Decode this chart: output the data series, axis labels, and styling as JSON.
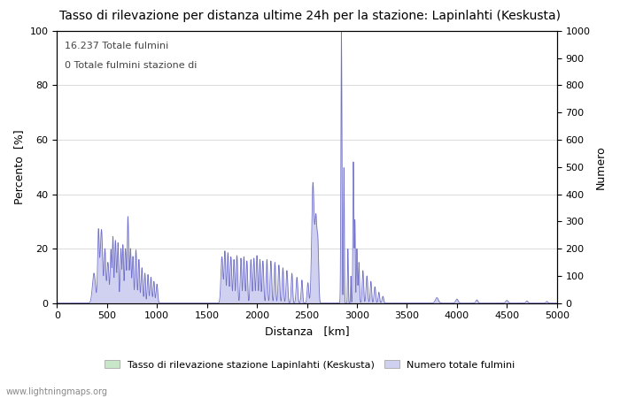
{
  "title": "Tasso di rilevazione per distanza ultime 24h per la stazione: Lapinlahti (Keskusta)",
  "xlabel": "Distanza   [km]",
  "ylabel_left": "Percento  [%]",
  "ylabel_right": "Numero",
  "annotation_line1": "16.237 Totale fulmini",
  "annotation_line2": "0 Totale fulmini stazione di",
  "xlim": [
    0,
    5000
  ],
  "ylim_left": [
    0,
    100
  ],
  "ylim_right": [
    0,
    1000
  ],
  "xtick_step": 500,
  "ytick_left_step": 20,
  "ytick_right_step": 100,
  "fill_color_detection": "#c8e6c8",
  "fill_color_total": "#d0d0f0",
  "line_color": "#7070c8",
  "legend_label_detection": "Tasso di rilevazione stazione Lapinlahti (Keskusta)",
  "legend_label_total": "Numero totale fulmini",
  "watermark": "www.lightningmaps.org",
  "background_color": "#ffffff",
  "grid_color": "#cccccc",
  "title_fontsize": 10,
  "axis_fontsize": 9,
  "tick_fontsize": 8,
  "annotation_fontsize": 8
}
